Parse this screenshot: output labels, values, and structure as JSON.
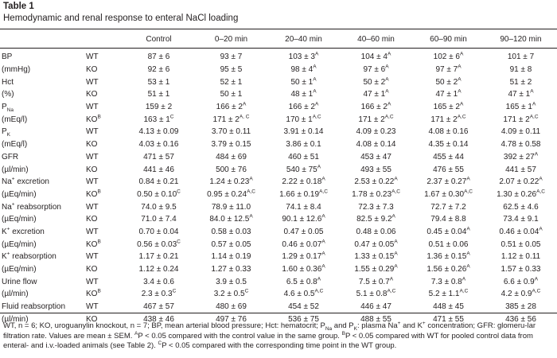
{
  "caption": {
    "label": "Table 1",
    "title": "Hemodynamic and renal response to enteral NaCl loading"
  },
  "columns": [
    "Control",
    "0–20 min",
    "20–40 min",
    "40–60 min",
    "60–90 min",
    "90–120 min"
  ],
  "rows": [
    {
      "var": "BP",
      "grp": "WT",
      "vals": [
        [
          "87 ± 6",
          ""
        ],
        [
          "93 ± 7",
          ""
        ],
        [
          "103 ± 3",
          "A"
        ],
        [
          "104 ± 4",
          "A"
        ],
        [
          "102 ± 6",
          "A"
        ],
        [
          "101 ± 7",
          ""
        ]
      ]
    },
    {
      "var": "(mmHg)",
      "grp": "KO",
      "vals": [
        [
          "92 ± 6",
          ""
        ],
        [
          "95 ± 5",
          ""
        ],
        [
          "98 ± 4",
          "A"
        ],
        [
          "97 ± 6",
          "A"
        ],
        [
          "97 ± 7",
          "A"
        ],
        [
          "91 ± 8",
          ""
        ]
      ]
    },
    {
      "var": "Hct",
      "grp": "WT",
      "vals": [
        [
          "53 ± 1",
          ""
        ],
        [
          "52 ± 1",
          ""
        ],
        [
          "50 ± 1",
          "A"
        ],
        [
          "50 ± 2",
          "A"
        ],
        [
          "50 ± 2",
          "A"
        ],
        [
          "51 ± 2",
          ""
        ]
      ]
    },
    {
      "var": "(%)",
      "grp": "KO",
      "vals": [
        [
          "51 ± 1",
          ""
        ],
        [
          "50 ± 1",
          ""
        ],
        [
          "48 ± 1",
          "A"
        ],
        [
          "47 ± 1",
          "A"
        ],
        [
          "47 ± 1",
          "A"
        ],
        [
          "47 ± 1",
          "A"
        ]
      ]
    },
    {
      "var": "P",
      "varSub": "Na",
      "grp": "WT",
      "vals": [
        [
          "159 ± 2",
          ""
        ],
        [
          "166 ± 2",
          "A"
        ],
        [
          "166 ± 2",
          "A"
        ],
        [
          "166 ± 2",
          "A"
        ],
        [
          "165 ± 2",
          "A"
        ],
        [
          "165 ± 1",
          "A"
        ]
      ]
    },
    {
      "var": "(mEq/l)",
      "grp": "KO",
      "grpSup": "B",
      "vals": [
        [
          "163 ± 1",
          "C"
        ],
        [
          "171 ± 2",
          "A, C"
        ],
        [
          "170 ± 1",
          "A,C"
        ],
        [
          "171 ± 2",
          "A,C"
        ],
        [
          "171 ± 2",
          "A,C"
        ],
        [
          "171 ± 2",
          "A,C"
        ]
      ]
    },
    {
      "var": "P",
      "varSub": "K",
      "grp": "WT",
      "vals": [
        [
          "4.13 ± 0.09",
          ""
        ],
        [
          "3.70 ± 0.11",
          ""
        ],
        [
          "3.91 ± 0.14",
          ""
        ],
        [
          "4.09 ± 0.23",
          ""
        ],
        [
          "4.08 ± 0.16",
          ""
        ],
        [
          "4.09 ± 0.11",
          ""
        ]
      ]
    },
    {
      "var": "(mEq/l)",
      "grp": "KO",
      "vals": [
        [
          "4.03 ± 0.16",
          ""
        ],
        [
          "3.79 ± 0.15",
          ""
        ],
        [
          "3.86 ± 0.1",
          ""
        ],
        [
          "4.08 ± 0.14",
          ""
        ],
        [
          "4.35 ± 0.14",
          ""
        ],
        [
          "4.78 ± 0.58",
          ""
        ]
      ]
    },
    {
      "var": "GFR",
      "grp": "WT",
      "vals": [
        [
          "471 ± 57",
          ""
        ],
        [
          "484 ± 69",
          ""
        ],
        [
          "460 ± 51",
          ""
        ],
        [
          "453 ± 47",
          ""
        ],
        [
          "455 ± 44",
          ""
        ],
        [
          "392 ± 27",
          "A"
        ]
      ]
    },
    {
      "var": "(µl/min)",
      "grp": "KO",
      "vals": [
        [
          "441 ± 46",
          ""
        ],
        [
          "500 ± 76",
          ""
        ],
        [
          "540 ± 75",
          "A"
        ],
        [
          "493 ± 55",
          ""
        ],
        [
          "476 ± 55",
          ""
        ],
        [
          "441 ± 57",
          ""
        ]
      ]
    },
    {
      "var": "Na",
      "varSup": "+",
      "varRest": " excretion",
      "grp": "WT",
      "vals": [
        [
          "0.84 ± 0.21",
          ""
        ],
        [
          "1.24 ± 0.23",
          "A"
        ],
        [
          "2.22 ± 0.18",
          "A"
        ],
        [
          "2.53 ± 0.22",
          "A"
        ],
        [
          "2.37 ± 0.27",
          "A"
        ],
        [
          "2.07 ± 0.22",
          "A"
        ]
      ]
    },
    {
      "var": "(µEq/min)",
      "grp": "KO",
      "grpSup": "B",
      "vals": [
        [
          "0.50 ± 0.10",
          "C"
        ],
        [
          "0.95 ± 0.24",
          "A,C"
        ],
        [
          "1.66 ± 0.19",
          "A,C"
        ],
        [
          "1.78 ± 0.23",
          "A,C"
        ],
        [
          "1.67 ± 0.30",
          "A,C"
        ],
        [
          "1.30 ± 0.26",
          "A,C"
        ]
      ]
    },
    {
      "var": "Na",
      "varSup": "+",
      "varRest": " reabsorption",
      "grp": "WT",
      "vals": [
        [
          "74.0 ± 9.5",
          ""
        ],
        [
          "78.9 ± 11.0",
          ""
        ],
        [
          "74.1 ± 8.4",
          ""
        ],
        [
          "72.3 ± 7.3",
          ""
        ],
        [
          "72.7 ± 7.2",
          ""
        ],
        [
          "62.5 ± 4.6",
          ""
        ]
      ]
    },
    {
      "var": "(µEq/min)",
      "grp": "KO",
      "vals": [
        [
          "71.0 ± 7.4",
          ""
        ],
        [
          "84.0 ± 12.5",
          "A"
        ],
        [
          "90.1 ± 12.6",
          "A"
        ],
        [
          "82.5 ± 9.2",
          "A"
        ],
        [
          "79.4 ± 8.8",
          ""
        ],
        [
          "73.4 ± 9.1",
          ""
        ]
      ]
    },
    {
      "var": "K",
      "varSup": "+",
      "varRest": " excretion",
      "grp": "WT",
      "vals": [
        [
          "0.70 ± 0.04",
          ""
        ],
        [
          "0.58 ± 0.03",
          ""
        ],
        [
          "0.47 ± 0.05",
          ""
        ],
        [
          "0.48 ± 0.06",
          ""
        ],
        [
          "0.45 ± 0.04",
          "A"
        ],
        [
          "0.46 ± 0.04",
          "A"
        ]
      ]
    },
    {
      "var": "(µEq/min)",
      "grp": "KO",
      "grpSup": "B",
      "vals": [
        [
          "0.56 ± 0.03",
          "C"
        ],
        [
          "0.57 ± 0.05",
          ""
        ],
        [
          "0.46 ± 0.07",
          "A"
        ],
        [
          "0.47 ± 0.05",
          "A"
        ],
        [
          "0.51 ± 0.06",
          ""
        ],
        [
          "0.51 ± 0.05",
          ""
        ]
      ]
    },
    {
      "var": "K",
      "varSup": "+",
      "varRest": " reabsorption",
      "grp": "WT",
      "vals": [
        [
          "1.17 ± 0.21",
          ""
        ],
        [
          "1.14 ± 0.19",
          ""
        ],
        [
          "1.29 ± 0.17",
          "A"
        ],
        [
          "1.33 ± 0.15",
          "A"
        ],
        [
          "1.36 ± 0.15",
          "A"
        ],
        [
          "1.12 ± 0.11",
          ""
        ]
      ]
    },
    {
      "var": "(µEq/min)",
      "grp": "KO",
      "vals": [
        [
          "1.12 ± 0.24",
          ""
        ],
        [
          "1.27 ± 0.33",
          ""
        ],
        [
          "1.60 ± 0.36",
          "A"
        ],
        [
          "1.55 ± 0.29",
          "A"
        ],
        [
          "1.56 ± 0.26",
          "A"
        ],
        [
          "1.57 ± 0.33",
          ""
        ]
      ]
    },
    {
      "var": "Urine flow",
      "grp": "WT",
      "vals": [
        [
          "3.4 ± 0.6",
          ""
        ],
        [
          "3.9 ± 0.5",
          ""
        ],
        [
          "6.5 ± 0.8",
          "A"
        ],
        [
          "7.5 ± 0.7",
          "A"
        ],
        [
          "7.3 ± 0.8",
          "A"
        ],
        [
          "6.6 ± 0.9",
          "A"
        ]
      ]
    },
    {
      "var": "(µl/min)",
      "grp": "KO",
      "grpSup": "B",
      "vals": [
        [
          "2.3 ± 0.3",
          "C"
        ],
        [
          "3.2 ± 0.5",
          "C"
        ],
        [
          "4.6 ± 0.5",
          "A,C"
        ],
        [
          "5.1 ± 0.8",
          "A,C"
        ],
        [
          "5.2 ± 1.1",
          "A,C"
        ],
        [
          "4.2 ± 0.9",
          "A,C"
        ]
      ]
    },
    {
      "var": "Fluid reabsorption",
      "grp": "WT",
      "vals": [
        [
          "467 ± 57",
          ""
        ],
        [
          "480 ± 69",
          ""
        ],
        [
          "454 ± 52",
          ""
        ],
        [
          "446 ± 47",
          ""
        ],
        [
          "448 ± 45",
          ""
        ],
        [
          "385 ± 28",
          ""
        ]
      ]
    },
    {
      "var": "(µl/min)",
      "grp": "KO",
      "vals": [
        [
          "438 ± 46",
          ""
        ],
        [
          "497 ± 76",
          ""
        ],
        [
          "536 ± 75",
          ""
        ],
        [
          "488 ± 55",
          ""
        ],
        [
          "471 ± 55",
          ""
        ],
        [
          "436 ± 56",
          ""
        ]
      ]
    }
  ],
  "footnote": {
    "line1": "WT, n = 6; KO, uroguanylin knockout, n = 7; BP, mean arterial blood pressure; Hct: hematocrit; P",
    "na_sub": "Na",
    "and": " and P",
    "k_sub": "K",
    "plasma": ": plasma Na",
    "plus1": "+",
    "and_k": " and K",
    "plus2": "+",
    "rest1": " concentration; GFR: glomeru-lar filtration rate. Values are mean ± SEM. ",
    "supA": "A",
    "pA": "P < 0.05 compared with the control value in the same group. ",
    "supB": "B",
    "pB": "P < 0.05 compared with WT for pooled control data from enteral- and i.v.-loaded animals (see Table 2). ",
    "supC": "C",
    "pC": "P < 0.05 compared with the corresponding time point in the WT group."
  }
}
